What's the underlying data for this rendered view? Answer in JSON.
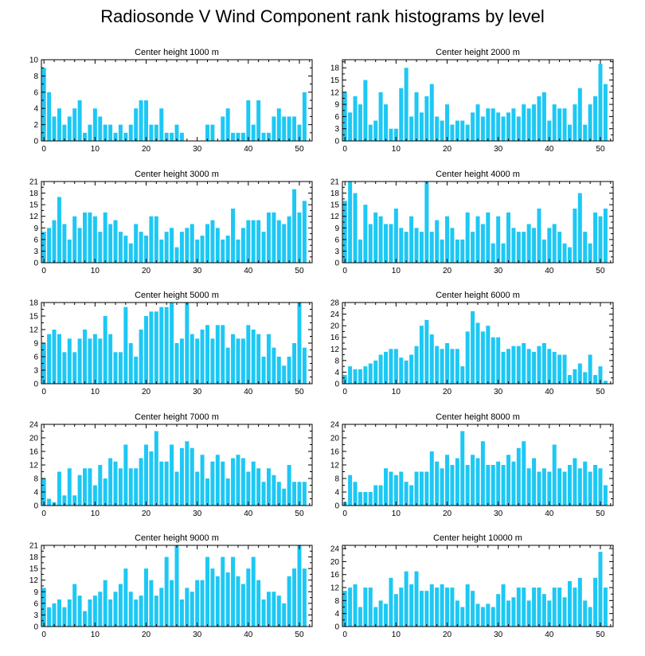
{
  "figure_title": "Radiosonde V Wind Component rank histograms by level",
  "chart_data": [
    {
      "type": "bar",
      "title": "Center height 1000 m",
      "xlabel": "",
      "ylabel": "",
      "xlim": [
        -0.5,
        52.5
      ],
      "ylim": [
        0,
        10
      ],
      "xticks": [
        0,
        10,
        20,
        30,
        40,
        50
      ],
      "yticks": [
        0,
        2,
        4,
        6,
        8,
        10
      ],
      "x": [
        0,
        1,
        2,
        3,
        4,
        5,
        6,
        7,
        8,
        9,
        10,
        11,
        12,
        13,
        14,
        15,
        16,
        17,
        18,
        19,
        20,
        21,
        22,
        23,
        24,
        25,
        26,
        27,
        28,
        29,
        30,
        31,
        32,
        33,
        34,
        35,
        36,
        37,
        38,
        39,
        40,
        41,
        42,
        43,
        44,
        45,
        46,
        47,
        48,
        49,
        50,
        51
      ],
      "values": [
        9,
        6,
        3,
        4,
        2,
        3,
        4,
        5,
        1,
        2,
        4,
        3,
        2,
        2,
        1,
        2,
        1,
        2,
        4,
        5,
        5,
        2,
        2,
        4,
        1,
        1,
        2,
        1,
        0,
        0,
        0,
        0,
        2,
        2,
        0,
        3,
        4,
        1,
        1,
        1,
        5,
        2,
        5,
        1,
        1,
        3,
        4,
        3,
        3,
        3,
        2,
        6
      ]
    },
    {
      "type": "bar",
      "title": "Center height 2000 m",
      "xlabel": "",
      "ylabel": "",
      "xlim": [
        -0.5,
        52.5
      ],
      "ylim": [
        0,
        20
      ],
      "xticks": [
        0,
        10,
        20,
        30,
        40,
        50
      ],
      "yticks": [
        0,
        3,
        6,
        9,
        12,
        15,
        18
      ],
      "x": [
        0,
        1,
        2,
        3,
        4,
        5,
        6,
        7,
        8,
        9,
        10,
        11,
        12,
        13,
        14,
        15,
        16,
        17,
        18,
        19,
        20,
        21,
        22,
        23,
        24,
        25,
        26,
        27,
        28,
        29,
        30,
        31,
        32,
        33,
        34,
        35,
        36,
        37,
        38,
        39,
        40,
        41,
        42,
        43,
        44,
        45,
        46,
        47,
        48,
        49,
        50,
        51
      ],
      "values": [
        12,
        7,
        11,
        9,
        15,
        4,
        5,
        12,
        9,
        3,
        3,
        13,
        18,
        6,
        12,
        7,
        11,
        14,
        6,
        5,
        9,
        4,
        5,
        5,
        4,
        7,
        9,
        6,
        8,
        8,
        7,
        6,
        7,
        8,
        6,
        9,
        8,
        9,
        11,
        12,
        5,
        9,
        8,
        8,
        4,
        9,
        13,
        4,
        9,
        11,
        19,
        14
      ]
    },
    {
      "type": "bar",
      "title": "Center height 3000 m",
      "xlabel": "",
      "ylabel": "",
      "xlim": [
        -0.5,
        52.5
      ],
      "ylim": [
        0,
        21
      ],
      "xticks": [
        0,
        10,
        20,
        30,
        40,
        50
      ],
      "yticks": [
        0,
        3,
        6,
        9,
        12,
        15,
        18,
        21
      ],
      "x": [
        0,
        1,
        2,
        3,
        4,
        5,
        6,
        7,
        8,
        9,
        10,
        11,
        12,
        13,
        14,
        15,
        16,
        17,
        18,
        19,
        20,
        21,
        22,
        23,
        24,
        25,
        26,
        27,
        28,
        29,
        30,
        31,
        32,
        33,
        34,
        35,
        36,
        37,
        38,
        39,
        40,
        41,
        42,
        43,
        44,
        45,
        46,
        47,
        48,
        49,
        50,
        51
      ],
      "values": [
        8,
        9,
        11,
        17,
        10,
        6,
        12,
        9,
        13,
        13,
        12,
        8,
        13,
        10,
        11,
        8,
        7,
        5,
        10,
        8,
        7,
        12,
        12,
        6,
        8,
        9,
        4,
        8,
        9,
        10,
        6,
        7,
        10,
        11,
        9,
        6,
        7,
        14,
        6,
        9,
        11,
        11,
        11,
        8,
        13,
        13,
        11,
        10,
        12,
        19,
        13,
        16
      ]
    },
    {
      "type": "bar",
      "title": "Center height 4000 m",
      "xlabel": "",
      "ylabel": "",
      "xlim": [
        -0.5,
        52.5
      ],
      "ylim": [
        0,
        21
      ],
      "xticks": [
        0,
        10,
        20,
        30,
        40,
        50
      ],
      "yticks": [
        0,
        3,
        6,
        9,
        12,
        15,
        18,
        21
      ],
      "x": [
        0,
        1,
        2,
        3,
        4,
        5,
        6,
        7,
        8,
        9,
        10,
        11,
        12,
        13,
        14,
        15,
        16,
        17,
        18,
        19,
        20,
        21,
        22,
        23,
        24,
        25,
        26,
        27,
        28,
        29,
        30,
        31,
        32,
        33,
        34,
        35,
        36,
        37,
        38,
        39,
        40,
        41,
        42,
        43,
        44,
        45,
        46,
        47,
        48,
        49,
        50,
        51
      ],
      "values": [
        16,
        21,
        18,
        6,
        15,
        10,
        13,
        12,
        10,
        10,
        14,
        9,
        8,
        12,
        9,
        8,
        21,
        8,
        11,
        6,
        12,
        9,
        6,
        6,
        13,
        8,
        12,
        10,
        13,
        5,
        12,
        5,
        13,
        9,
        8,
        8,
        10,
        9,
        14,
        6,
        9,
        10,
        8,
        5,
        4,
        14,
        18,
        8,
        5,
        13,
        12,
        14
      ]
    },
    {
      "type": "bar",
      "title": "Center height 5000 m",
      "xlabel": "",
      "ylabel": "",
      "xlim": [
        -0.5,
        52.5
      ],
      "ylim": [
        0,
        18
      ],
      "xticks": [
        0,
        10,
        20,
        30,
        40,
        50
      ],
      "yticks": [
        0,
        3,
        6,
        9,
        12,
        15,
        18
      ],
      "x": [
        0,
        1,
        2,
        3,
        4,
        5,
        6,
        7,
        8,
        9,
        10,
        11,
        12,
        13,
        14,
        15,
        16,
        17,
        18,
        19,
        20,
        21,
        22,
        23,
        24,
        25,
        26,
        27,
        28,
        29,
        30,
        31,
        32,
        33,
        34,
        35,
        36,
        37,
        38,
        39,
        40,
        41,
        42,
        43,
        44,
        45,
        46,
        47,
        48,
        49,
        50,
        51
      ],
      "values": [
        9,
        11,
        12,
        11,
        7,
        10,
        7,
        10,
        12,
        10,
        11,
        10,
        15,
        11,
        7,
        7,
        17,
        9,
        6,
        12,
        15,
        16,
        16,
        17,
        17,
        18,
        9,
        10,
        18,
        11,
        10,
        12,
        13,
        10,
        13,
        13,
        8,
        11,
        10,
        10,
        13,
        12,
        11,
        6,
        11,
        8,
        6,
        4,
        6,
        9,
        18,
        8
      ]
    },
    {
      "type": "bar",
      "title": "Center height 6000 m",
      "xlabel": "",
      "ylabel": "",
      "xlim": [
        -0.5,
        52.5
      ],
      "ylim": [
        0,
        28
      ],
      "xticks": [
        0,
        10,
        20,
        30,
        40,
        50
      ],
      "yticks": [
        0,
        4,
        8,
        12,
        16,
        20,
        24,
        28
      ],
      "x": [
        0,
        1,
        2,
        3,
        4,
        5,
        6,
        7,
        8,
        9,
        10,
        11,
        12,
        13,
        14,
        15,
        16,
        17,
        18,
        19,
        20,
        21,
        22,
        23,
        24,
        25,
        26,
        27,
        28,
        29,
        30,
        31,
        32,
        33,
        34,
        35,
        36,
        37,
        38,
        39,
        40,
        41,
        42,
        43,
        44,
        45,
        46,
        47,
        48,
        49,
        50,
        51
      ],
      "values": [
        3,
        6,
        5,
        5,
        6,
        7,
        8,
        10,
        11,
        12,
        12,
        9,
        8,
        10,
        13,
        20,
        22,
        17,
        13,
        12,
        14,
        12,
        12,
        6,
        18,
        25,
        21,
        18,
        20,
        16,
        16,
        11,
        12,
        13,
        13,
        14,
        12,
        11,
        13,
        14,
        12,
        11,
        10,
        10,
        3,
        5,
        7,
        4,
        10,
        3,
        6,
        1
      ]
    },
    {
      "type": "bar",
      "title": "Center height 7000 m",
      "xlabel": "",
      "ylabel": "",
      "xlim": [
        -0.5,
        52.5
      ],
      "ylim": [
        0,
        24
      ],
      "xticks": [
        0,
        10,
        20,
        30,
        40,
        50
      ],
      "yticks": [
        0,
        4,
        8,
        12,
        16,
        20,
        24
      ],
      "x": [
        0,
        1,
        2,
        3,
        4,
        5,
        6,
        7,
        8,
        9,
        10,
        11,
        12,
        13,
        14,
        15,
        16,
        17,
        18,
        19,
        20,
        21,
        22,
        23,
        24,
        25,
        26,
        27,
        28,
        29,
        30,
        31,
        32,
        33,
        34,
        35,
        36,
        37,
        38,
        39,
        40,
        41,
        42,
        43,
        44,
        45,
        46,
        47,
        48,
        49,
        50,
        51
      ],
      "values": [
        8,
        2,
        1,
        10,
        3,
        11,
        3,
        9,
        11,
        11,
        6,
        12,
        8,
        14,
        13,
        11,
        18,
        11,
        11,
        14,
        18,
        16,
        22,
        13,
        13,
        18,
        10,
        17,
        19,
        17,
        10,
        15,
        8,
        13,
        15,
        13,
        8,
        14,
        15,
        14,
        10,
        13,
        11,
        7,
        11,
        9,
        7,
        5,
        12,
        7,
        7,
        7
      ]
    },
    {
      "type": "bar",
      "title": "Center height 8000 m",
      "xlabel": "",
      "ylabel": "",
      "xlim": [
        -0.5,
        52.5
      ],
      "ylim": [
        0,
        24
      ],
      "xticks": [
        0,
        10,
        20,
        30,
        40,
        50
      ],
      "yticks": [
        0,
        4,
        8,
        12,
        16,
        20,
        24
      ],
      "x": [
        0,
        1,
        2,
        3,
        4,
        5,
        6,
        7,
        8,
        9,
        10,
        11,
        12,
        13,
        14,
        15,
        16,
        17,
        18,
        19,
        20,
        21,
        22,
        23,
        24,
        25,
        26,
        27,
        28,
        29,
        30,
        31,
        32,
        33,
        34,
        35,
        36,
        37,
        38,
        39,
        40,
        41,
        42,
        43,
        44,
        45,
        46,
        47,
        48,
        49,
        50,
        51
      ],
      "values": [
        1,
        9,
        7,
        4,
        4,
        4,
        6,
        6,
        11,
        10,
        9,
        10,
        7,
        6,
        10,
        10,
        10,
        16,
        13,
        11,
        15,
        12,
        14,
        22,
        12,
        15,
        14,
        19,
        12,
        12,
        13,
        12,
        15,
        13,
        17,
        19,
        11,
        14,
        10,
        11,
        10,
        18,
        11,
        10,
        12,
        14,
        11,
        13,
        10,
        12,
        11,
        6
      ]
    },
    {
      "type": "bar",
      "title": "Center height 9000 m",
      "xlabel": "",
      "ylabel": "",
      "xlim": [
        -0.5,
        52.5
      ],
      "ylim": [
        0,
        21
      ],
      "xticks": [
        0,
        10,
        20,
        30,
        40,
        50
      ],
      "yticks": [
        0,
        3,
        6,
        9,
        12,
        15,
        18,
        21
      ],
      "x": [
        0,
        1,
        2,
        3,
        4,
        5,
        6,
        7,
        8,
        9,
        10,
        11,
        12,
        13,
        14,
        15,
        16,
        17,
        18,
        19,
        20,
        21,
        22,
        23,
        24,
        25,
        26,
        27,
        28,
        29,
        30,
        31,
        32,
        33,
        34,
        35,
        36,
        37,
        38,
        39,
        40,
        41,
        42,
        43,
        44,
        45,
        46,
        47,
        48,
        49,
        50,
        51
      ],
      "values": [
        10,
        5,
        6,
        7,
        5,
        7,
        11,
        8,
        4,
        7,
        8,
        9,
        12,
        7,
        9,
        11,
        15,
        9,
        7,
        8,
        15,
        12,
        8,
        10,
        18,
        12,
        21,
        7,
        10,
        9,
        12,
        12,
        18,
        15,
        13,
        18,
        14,
        18,
        13,
        11,
        15,
        18,
        12,
        7,
        9,
        9,
        8,
        6,
        13,
        15,
        21,
        15
      ]
    },
    {
      "type": "bar",
      "title": "Center height 10000 m",
      "xlabel": "",
      "ylabel": "",
      "xlim": [
        -0.5,
        52.5
      ],
      "ylim": [
        0,
        25
      ],
      "xticks": [
        0,
        10,
        20,
        30,
        40,
        50
      ],
      "yticks": [
        0,
        4,
        8,
        12,
        16,
        20,
        24
      ],
      "x": [
        0,
        1,
        2,
        3,
        4,
        5,
        6,
        7,
        8,
        9,
        10,
        11,
        12,
        13,
        14,
        15,
        16,
        17,
        18,
        19,
        20,
        21,
        22,
        23,
        24,
        25,
        26,
        27,
        28,
        29,
        30,
        31,
        32,
        33,
        34,
        35,
        36,
        37,
        38,
        39,
        40,
        41,
        42,
        43,
        44,
        45,
        46,
        47,
        48,
        49,
        50,
        51
      ],
      "values": [
        11,
        12,
        13,
        6,
        12,
        12,
        6,
        8,
        7,
        15,
        10,
        12,
        17,
        13,
        17,
        11,
        11,
        13,
        12,
        13,
        12,
        12,
        8,
        6,
        13,
        11,
        7,
        6,
        7,
        6,
        10,
        13,
        8,
        9,
        12,
        12,
        8,
        12,
        12,
        10,
        8,
        12,
        12,
        9,
        14,
        12,
        15,
        8,
        6,
        15,
        23,
        12
      ]
    }
  ]
}
